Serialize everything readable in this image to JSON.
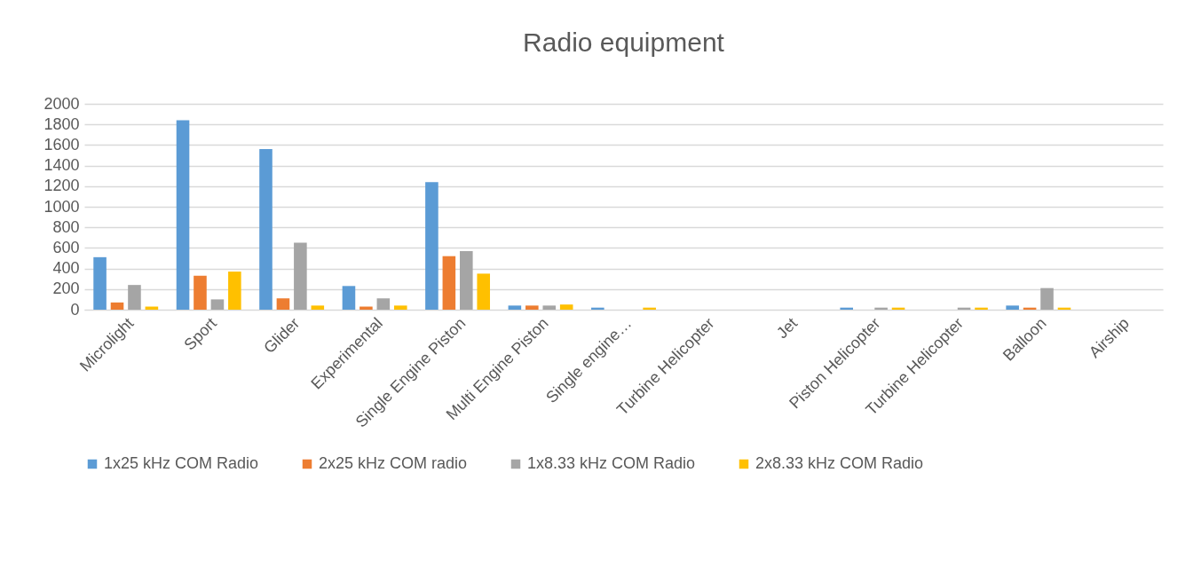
{
  "chart_data": {
    "type": "bar",
    "title": "Radio equipment",
    "categories": [
      "Microlight",
      "Sport",
      "Glider",
      "Experimental",
      "Single Engine Piston",
      "Multi Engine Piston",
      "Single engine…",
      "Turbine Helicopter",
      "Jet",
      "Piston Helicopter",
      "Turbine Helicopter",
      "Balloon",
      "Airship"
    ],
    "series": [
      {
        "name": "1x25 kHz COM Radio",
        "color": "#5b9bd5",
        "values": [
          510,
          1840,
          1560,
          230,
          1240,
          40,
          20,
          0,
          0,
          20,
          0,
          40,
          0
        ]
      },
      {
        "name": "2x25 kHz COM radio",
        "color": "#ed7d31",
        "values": [
          70,
          330,
          110,
          30,
          520,
          40,
          0,
          0,
          0,
          0,
          0,
          20,
          0
        ]
      },
      {
        "name": "1x8.33 kHz COM Radio",
        "color": "#a5a5a5",
        "values": [
          240,
          100,
          650,
          110,
          570,
          40,
          0,
          0,
          0,
          20,
          20,
          210,
          0
        ]
      },
      {
        "name": "2x8.33 kHz COM Radio",
        "color": "#ffc000",
        "values": [
          30,
          370,
          40,
          40,
          350,
          50,
          20,
          0,
          0,
          20,
          20,
          20,
          0
        ]
      }
    ],
    "ylim": [
      0,
      2000
    ],
    "yticks": [
      0,
      200,
      400,
      600,
      800,
      1000,
      1200,
      1400,
      1600,
      1800,
      2000
    ],
    "grid": "y",
    "legend": "bottom"
  }
}
